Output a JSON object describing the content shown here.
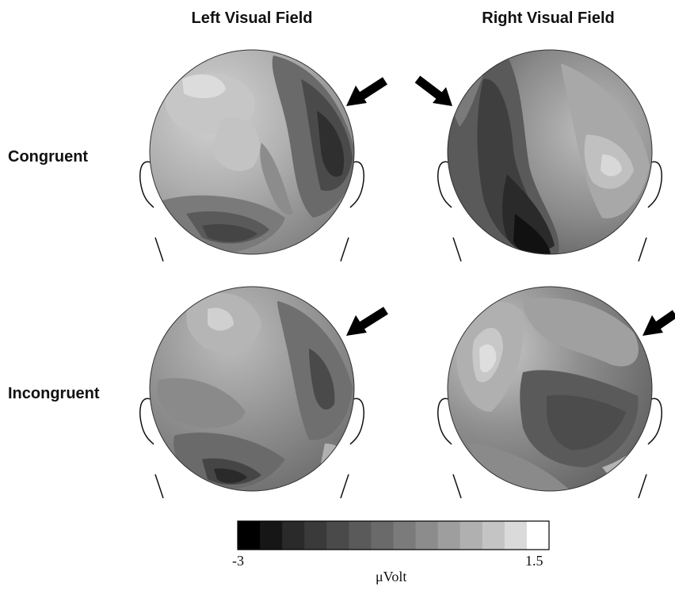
{
  "columns": [
    "Left Visual Field",
    "Right Visual Field"
  ],
  "rows": [
    "Congruent",
    "Incongruent"
  ],
  "colorbar": {
    "min_label": "-3",
    "max_label": "1.5",
    "unit": "μVolt",
    "steps": 14,
    "colors": [
      "#000000",
      "#161616",
      "#2a2a2a",
      "#3a3a3a",
      "#4a4a4a",
      "#5a5a5a",
      "#6a6a6a",
      "#7b7b7b",
      "#8c8c8c",
      "#9e9e9e",
      "#b0b0b0",
      "#c4c4c4",
      "#dadada",
      "#ffffff"
    ]
  },
  "maps": [
    {
      "id": "congruent-left",
      "arrow": "upper-right"
    },
    {
      "id": "congruent-right",
      "arrow": "upper-left"
    },
    {
      "id": "incongruent-left",
      "arrow": "upper-right"
    },
    {
      "id": "incongruent-right",
      "arrow": "upper-right"
    }
  ]
}
